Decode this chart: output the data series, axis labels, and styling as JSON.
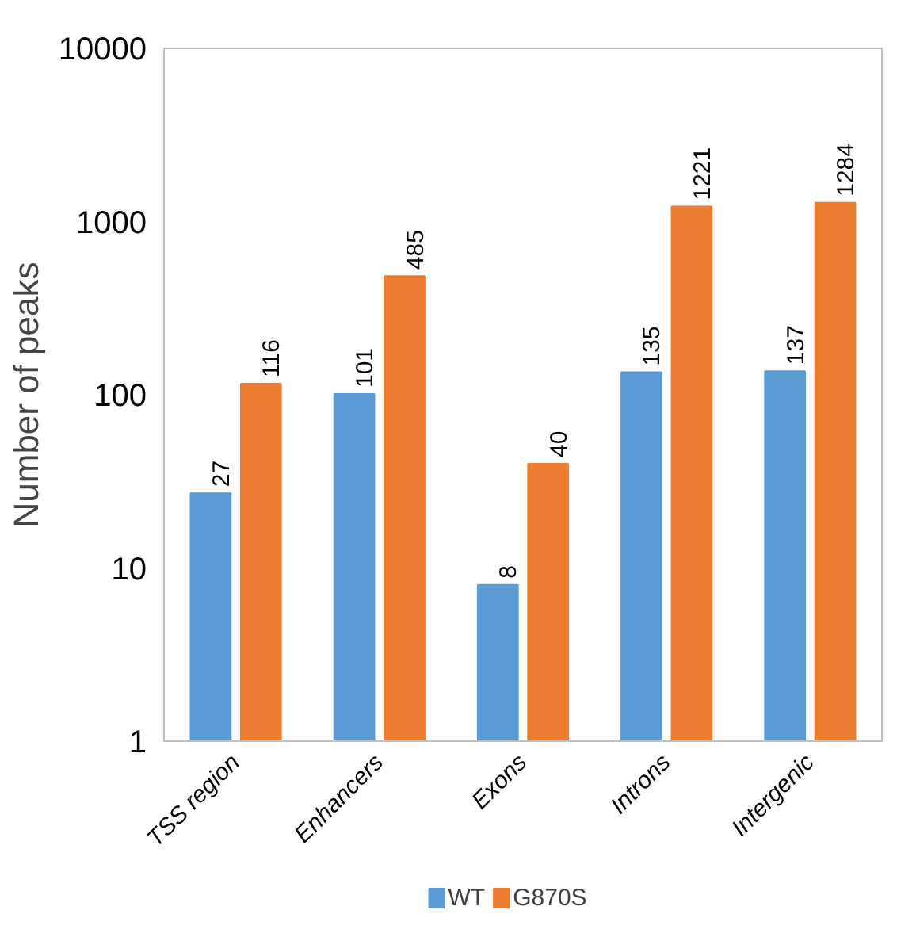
{
  "chart_data": {
    "type": "bar",
    "ylabel": "Number of peaks",
    "categories": [
      "TSS region",
      "Enhancers",
      "Exons",
      "Introns",
      "Intergenic"
    ],
    "series": [
      {
        "name": "WT",
        "color": "#5b9bd5",
        "values": [
          27,
          101,
          8,
          135,
          137
        ]
      },
      {
        "name": "G870S",
        "color": "#ed7d31",
        "values": [
          116,
          485,
          40,
          1221,
          1284
        ]
      }
    ],
    "log": "y",
    "ylim": [
      1,
      10000
    ],
    "yticks": [
      1,
      10,
      100,
      1000,
      10000
    ],
    "data_labels": true,
    "legend": "bottom",
    "grid": false
  }
}
